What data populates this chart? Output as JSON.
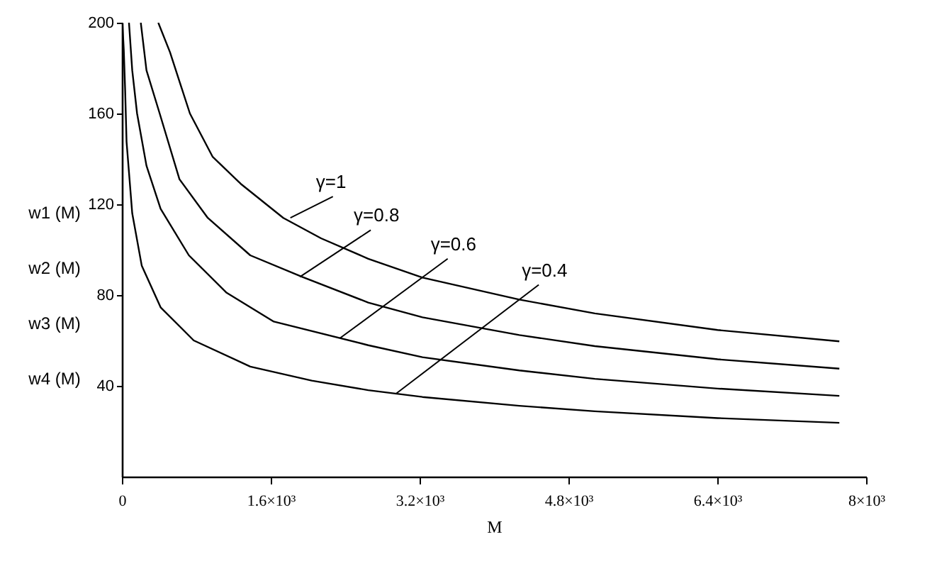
{
  "chart_data": {
    "type": "line",
    "xlabel": "M",
    "ylabel": "w1 (M)\nw2 (M)\nw3 (M)\nw4 (M)",
    "xlim": [
      0,
      8000
    ],
    "ylim": [
      0,
      200
    ],
    "xticks": [
      0,
      {
        "value": 1600,
        "label": "1.6×10³"
      },
      {
        "value": 3200,
        "label": "3.2×10³"
      },
      {
        "value": 4800,
        "label": "4.8×10³"
      },
      {
        "value": 6400,
        "label": "6.4×10³"
      },
      {
        "value": 8000,
        "label": "8×10³"
      }
    ],
    "yticks": [
      40,
      80,
      120,
      160,
      200
    ],
    "grid": false,
    "marker": "none",
    "line_style": "solid",
    "series": [
      {
        "color": "#000000",
        "x": [
          391,
          517,
          731,
          974,
          1278,
          1735,
          2141,
          2648,
          3231,
          4272,
          5084,
          6403,
          7712
        ],
        "values": [
          200,
          187,
          160,
          141,
          129,
          114,
          105,
          96,
          87.7,
          78,
          71.9,
          64.6,
          59.6
        ]
      },
      {
        "color": "#000000",
        "x": [
          203,
          264,
          406,
          619,
          923,
          1380,
          1938,
          2648,
          3231,
          4272,
          5084,
          6403,
          7712
        ],
        "values": [
          200,
          179,
          160,
          131,
          114,
          97.5,
          88,
          76.7,
          70.2,
          62.4,
          57.5,
          51.7,
          47.6
        ]
      },
      {
        "color": "#000000",
        "x": [
          76,
          111,
          163,
          264,
          416,
          720,
          1126,
          1633,
          2648,
          3231,
          4272,
          5084,
          6403,
          7712
        ],
        "values": [
          200,
          179,
          160,
          137,
          118,
          97.5,
          81,
          68.3,
          57.9,
          52.6,
          46.8,
          43.1,
          38.8,
          35.6
        ]
      },
      {
        "color": "#000000",
        "x": [
          5,
          20,
          35,
          50,
          111,
          213,
          416,
          772,
          1380,
          2040,
          2648,
          3231,
          4272,
          5084,
          6403,
          7712
        ],
        "values": [
          200,
          188,
          170,
          147.5,
          116,
          93,
          74.6,
          60,
          48.5,
          42.3,
          38.1,
          35.1,
          31.2,
          28.8,
          25.8,
          23.7
        ]
      }
    ],
    "annotations": [
      {
        "text": "γ=1",
        "x": 1811,
        "y": 114
      },
      {
        "text": "γ=0.8",
        "x": 1913,
        "y": 88
      },
      {
        "text": "γ=0.6",
        "x": 2344,
        "y": 61
      },
      {
        "text": "γ=0.4",
        "x": 2942,
        "y": 36.4
      }
    ]
  }
}
